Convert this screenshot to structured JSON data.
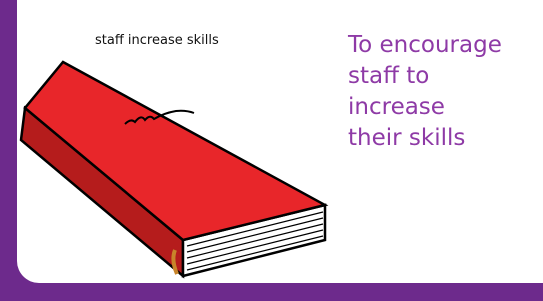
{
  "caption": "staff increase skills",
  "text_lines": [
    "To encourage",
    "staff to",
    "increase",
    "their skills"
  ]
}
